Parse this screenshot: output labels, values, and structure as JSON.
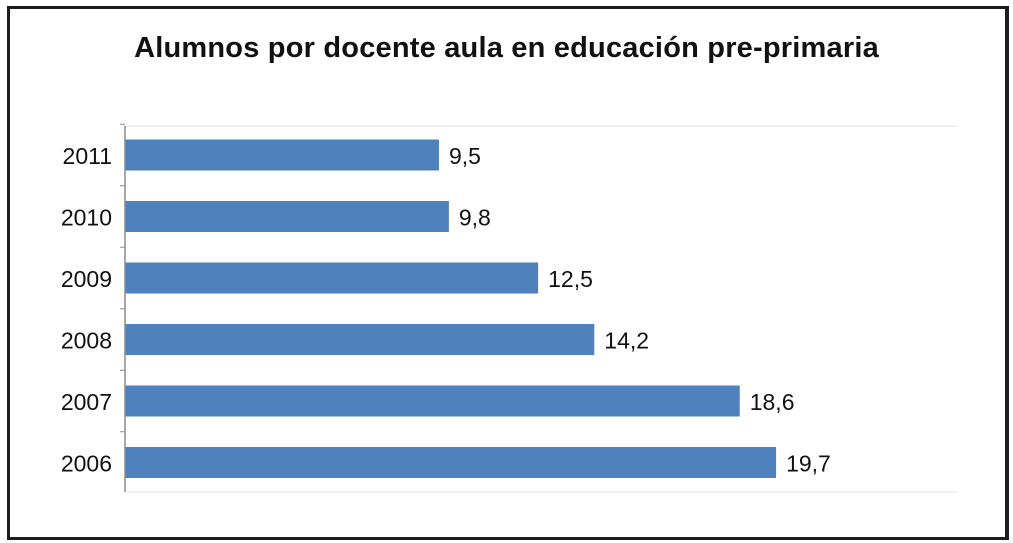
{
  "chart_data": {
    "type": "bar",
    "orientation": "horizontal",
    "title": "Alumnos por docente aula en educación pre-primaria",
    "categories": [
      "2011",
      "2010",
      "2009",
      "2008",
      "2007",
      "2006"
    ],
    "values": [
      9.5,
      9.8,
      12.5,
      14.2,
      18.6,
      19.7
    ],
    "value_labels": [
      "9,5",
      "9,8",
      "12,5",
      "14,2",
      "18,6",
      "19,7"
    ],
    "xlabel": "",
    "ylabel": "",
    "xlim": [
      0,
      25
    ],
    "grid": false,
    "legend": "none",
    "bar_color": "#4f81bd"
  }
}
